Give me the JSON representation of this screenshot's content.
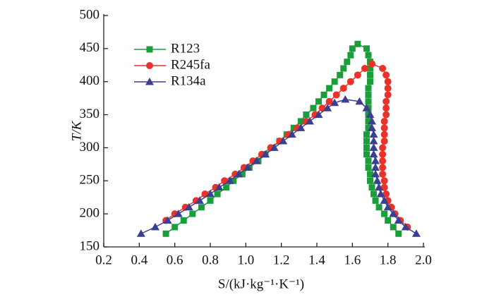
{
  "chart_data": {
    "type": "line",
    "x_label": "S/(kJ·kg⁻¹·K⁻¹)",
    "y_label": "T/K",
    "xlim": [
      0.2,
      2.0
    ],
    "xticks": [
      0.2,
      0.4,
      0.6,
      0.8,
      {
        "value": 1,
        "label": "1.0"
      },
      1.2,
      1.4,
      1.6,
      1.8,
      {
        "value": 2,
        "label": "2.0"
      }
    ],
    "ylim": [
      150,
      500
    ],
    "yticks": [
      150,
      200,
      250,
      300,
      350,
      400,
      450,
      500
    ],
    "legend": "upper left",
    "series": [
      {
        "name": "R123",
        "color": "#1a9e3a",
        "marker": "square",
        "x": [
          0.55,
          0.6,
          0.65,
          0.7,
          0.75,
          0.8,
          0.84,
          0.89,
          0.93,
          0.98,
          1.02,
          1.07,
          1.11,
          1.15,
          1.19,
          1.23,
          1.27,
          1.31,
          1.34,
          1.38,
          1.41,
          1.44,
          1.47,
          1.5,
          1.53,
          1.55,
          1.57,
          1.59,
          1.6,
          1.63,
          1.68,
          1.69,
          1.7,
          1.7,
          1.7,
          1.7,
          1.69,
          1.69,
          1.69,
          1.69,
          1.69,
          1.69,
          1.69,
          1.68,
          1.68,
          1.68,
          1.68,
          1.69,
          1.69,
          1.7,
          1.7,
          1.71,
          1.72,
          1.73,
          1.75,
          1.78,
          1.8,
          1.83,
          1.86
        ],
        "values": [
          170,
          180,
          190,
          200,
          210,
          220,
          230,
          240,
          250,
          260,
          270,
          280,
          290,
          300,
          310,
          320,
          330,
          340,
          350,
          360,
          370,
          380,
          390,
          400,
          410,
          420,
          430,
          440,
          450,
          457,
          450,
          440,
          430,
          420,
          410,
          400,
          390,
          380,
          370,
          360,
          350,
          340,
          330,
          320,
          310,
          300,
          290,
          280,
          270,
          260,
          250,
          240,
          230,
          220,
          210,
          200,
          190,
          180,
          170
        ]
      },
      {
        "name": "R245fa",
        "color": "#e8322a",
        "marker": "circle",
        "x": [
          0.55,
          0.6,
          0.66,
          0.72,
          0.77,
          0.83,
          0.88,
          0.94,
          0.99,
          1.04,
          1.09,
          1.14,
          1.19,
          1.24,
          1.29,
          1.34,
          1.39,
          1.43,
          1.47,
          1.51,
          1.55,
          1.59,
          1.63,
          1.67,
          1.71,
          1.77,
          1.79,
          1.8,
          1.8,
          1.8,
          1.79,
          1.79,
          1.79,
          1.78,
          1.78,
          1.78,
          1.78,
          1.77,
          1.77,
          1.77,
          1.77,
          1.77,
          1.78,
          1.78,
          1.79,
          1.8,
          1.82,
          1.84,
          1.87,
          1.91
        ],
        "values": [
          190,
          200,
          210,
          220,
          230,
          240,
          250,
          260,
          270,
          280,
          290,
          300,
          310,
          320,
          330,
          340,
          350,
          360,
          370,
          380,
          390,
          400,
          410,
          420,
          427,
          420,
          410,
          400,
          390,
          380,
          370,
          360,
          350,
          340,
          330,
          320,
          310,
          300,
          290,
          280,
          270,
          260,
          250,
          240,
          230,
          220,
          210,
          200,
          190,
          180
        ]
      },
      {
        "name": "R134a",
        "color": "#3a3f8f",
        "marker": "triangle",
        "x": [
          0.41,
          0.49,
          0.56,
          0.62,
          0.68,
          0.74,
          0.8,
          0.85,
          0.91,
          0.96,
          1.01,
          1.06,
          1.11,
          1.16,
          1.21,
          1.26,
          1.31,
          1.36,
          1.41,
          1.46,
          1.5,
          1.56,
          1.64,
          1.68,
          1.7,
          1.71,
          1.71,
          1.72,
          1.72,
          1.72,
          1.72,
          1.73,
          1.73,
          1.73,
          1.74,
          1.75,
          1.76,
          1.78,
          1.8,
          1.83,
          1.86,
          1.9,
          1.96
        ],
        "values": [
          170,
          180,
          190,
          200,
          210,
          220,
          230,
          240,
          250,
          260,
          270,
          280,
          290,
          300,
          310,
          320,
          330,
          340,
          350,
          360,
          368,
          373,
          370,
          360,
          350,
          340,
          330,
          320,
          310,
          300,
          290,
          280,
          270,
          260,
          250,
          240,
          230,
          220,
          210,
          200,
          190,
          180,
          170
        ]
      }
    ]
  }
}
